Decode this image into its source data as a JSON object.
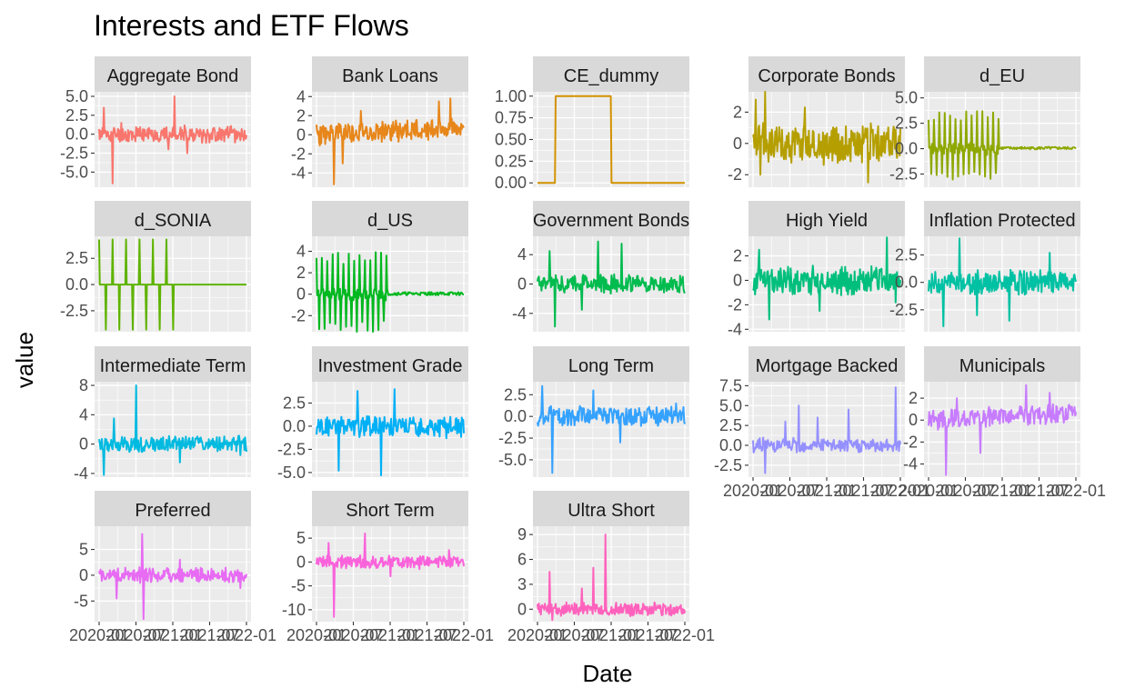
{
  "chart_data": {
    "type": "line",
    "title": "Interests and ETF Flows",
    "xlabel": "Date",
    "ylabel": "value",
    "x_tick_labels": [
      "2020-01",
      "2020-07",
      "2021-01",
      "2021-07",
      "2022-01"
    ],
    "x_range": [
      "2019-12-01",
      "2022-03-01"
    ],
    "grid": true,
    "legend": "none",
    "series": [
      {
        "name": "Aggregate Bond",
        "color": "#F8766D",
        "ylim": [
          -7,
          5.6
        ],
        "y_ticks": [
          5.0,
          2.5,
          0.0,
          -2.5,
          -5.0
        ],
        "y_tick_labels": [
          "5.0",
          "2.5",
          "0.0",
          "-2.5",
          "-5.0"
        ],
        "shape": "noise",
        "amp": 1.2,
        "spikes": [
          [
            0.03,
            3.5
          ],
          [
            0.09,
            -6.5
          ],
          [
            0.51,
            5.0
          ],
          [
            0.6,
            -2.5
          ],
          [
            0.47,
            -2.0
          ],
          [
            0.15,
            1.5
          ]
        ],
        "seed": 11
      },
      {
        "name": "Bank Loans",
        "color": "#E7861A",
        "ylim": [
          -5.5,
          4.5
        ],
        "y_ticks": [
          4,
          2,
          0,
          -2,
          -4
        ],
        "y_tick_labels": [
          "4",
          "2",
          "0",
          "-2",
          "-4"
        ],
        "shape": "noise",
        "amp": 1.3,
        "trend": 0.8,
        "spikes": [
          [
            0.12,
            -5.2
          ],
          [
            0.91,
            3.8
          ],
          [
            0.83,
            3.5
          ],
          [
            0.3,
            2.5
          ],
          [
            0.18,
            -3.0
          ]
        ],
        "seed": 23
      },
      {
        "name": "CE_dummy",
        "color": "#D39200",
        "ylim": [
          -0.05,
          1.05
        ],
        "y_ticks": [
          1.0,
          0.75,
          0.5,
          0.25,
          0.0
        ],
        "y_tick_labels": [
          "1.00",
          "0.75",
          "0.50",
          "0.25",
          "0.00"
        ],
        "shape": "dummy",
        "on": [
          0.12,
          0.5
        ]
      },
      {
        "name": "Corporate Bonds",
        "color": "#B59F00",
        "ylim": [
          -2.8,
          3.3
        ],
        "y_ticks": [
          2,
          0,
          -2
        ],
        "y_tick_labels": [
          "2",
          "0",
          "-2"
        ],
        "shape": "noise",
        "amp": 1.5,
        "spikes": [
          [
            0.02,
            2.8
          ],
          [
            0.08,
            3.3
          ],
          [
            0.05,
            -2.0
          ],
          [
            0.78,
            -2.5
          ],
          [
            0.35,
            2.3
          ]
        ],
        "seed": 37
      },
      {
        "name": "d_EU",
        "color": "#8EA800",
        "ylim": [
          -3.8,
          5.6
        ],
        "y_ticks": [
          5.0,
          2.5,
          0.0,
          -2.5
        ],
        "y_tick_labels": [
          "5.0",
          "2.5",
          "0.0",
          "-2.5"
        ],
        "shape": "osc",
        "amp": 3.8,
        "cut": 0.48,
        "tail": 0.25,
        "seed": 41
      },
      {
        "name": "d_SONIA",
        "color": "#5EB300",
        "ylim": [
          -4.5,
          4.6
        ],
        "y_ticks": [
          2.5,
          0.0,
          -2.5
        ],
        "y_tick_labels": [
          "2.5",
          "0.0",
          "-2.5"
        ],
        "shape": "step",
        "amp": 4.3,
        "cut": 0.52,
        "seed": 53
      },
      {
        "name": "d_US",
        "color": "#00B81F",
        "ylim": [
          -3.5,
          5.4
        ],
        "y_ticks": [
          4,
          2,
          0,
          -2
        ],
        "y_tick_labels": [
          "4",
          "2",
          "0",
          "-2"
        ],
        "shape": "osc",
        "amp": 4.0,
        "cut": 0.48,
        "tail": 0.3,
        "seed": 59
      },
      {
        "name": "Government Bonds",
        "color": "#00BB4E",
        "ylim": [
          -6.5,
          6.5
        ],
        "y_ticks": [
          4,
          0,
          -4
        ],
        "y_tick_labels": [
          "4",
          "0",
          "-4"
        ],
        "shape": "noise",
        "amp": 1.4,
        "spikes": [
          [
            0.12,
            -5.8
          ],
          [
            0.41,
            5.8
          ],
          [
            0.57,
            5.5
          ],
          [
            0.08,
            4.5
          ],
          [
            0.3,
            -3.5
          ]
        ],
        "seed": 61
      },
      {
        "name": "High Yield",
        "color": "#00BF7D",
        "ylim": [
          -4.2,
          3.6
        ],
        "y_ticks": [
          2,
          0,
          -2,
          -4
        ],
        "y_tick_labels": [
          "2",
          "0",
          "-2",
          "-4"
        ],
        "shape": "noise",
        "amp": 1.3,
        "spikes": [
          [
            0.91,
            3.5
          ],
          [
            0.11,
            -3.2
          ],
          [
            0.04,
            2.5
          ],
          [
            0.97,
            -1.8
          ],
          [
            0.45,
            -2.5
          ]
        ],
        "seed": 71
      },
      {
        "name": "Inflation Protected",
        "color": "#00C1A3",
        "ylim": [
          -4.5,
          4.2
        ],
        "y_ticks": [
          2.5,
          0.0,
          -2.5
        ],
        "y_tick_labels": [
          "2.5",
          "0.0",
          "-2.5"
        ],
        "shape": "noise",
        "amp": 1.2,
        "spikes": [
          [
            0.21,
            4.0
          ],
          [
            0.1,
            -4.0
          ],
          [
            0.55,
            -3.5
          ],
          [
            0.82,
            2.7
          ],
          [
            0.33,
            -3.0
          ]
        ],
        "seed": 83
      },
      {
        "name": "Intermediate Term",
        "color": "#00BAE0",
        "ylim": [
          -4.5,
          8.5
        ],
        "y_ticks": [
          8,
          4,
          0,
          -4
        ],
        "y_tick_labels": [
          "8",
          "4",
          "0",
          "-4"
        ],
        "shape": "noise",
        "amp": 1.3,
        "spikes": [
          [
            0.25,
            8.0
          ],
          [
            0.03,
            -4.2
          ],
          [
            0.1,
            3.5
          ],
          [
            0.55,
            -2.5
          ],
          [
            0.96,
            -1.5
          ]
        ],
        "seed": 97
      },
      {
        "name": "Investment Grade",
        "color": "#00B0F6",
        "ylim": [
          -5.5,
          4.8
        ],
        "y_ticks": [
          2.5,
          0.0,
          -2.5,
          -5.0
        ],
        "y_tick_labels": [
          "2.5",
          "0.0",
          "-2.5",
          "-5.0"
        ],
        "shape": "noise",
        "amp": 1.3,
        "spikes": [
          [
            0.28,
            3.8
          ],
          [
            0.15,
            -4.8
          ],
          [
            0.44,
            -5.3
          ],
          [
            0.53,
            4.0
          ],
          [
            0.88,
            -1.3
          ]
        ],
        "seed": 101
      },
      {
        "name": "Long Term",
        "color": "#35A2FF",
        "ylim": [
          -7,
          4
        ],
        "y_ticks": [
          2.5,
          0.0,
          -2.5,
          -5.0
        ],
        "y_tick_labels": [
          "2.5",
          "0.0",
          "-2.5",
          "-5.0"
        ],
        "shape": "noise",
        "amp": 1.3,
        "spikes": [
          [
            0.1,
            -6.5
          ],
          [
            0.03,
            3.5
          ],
          [
            0.38,
            3.0
          ],
          [
            0.56,
            -3.0
          ],
          [
            0.94,
            1.5
          ]
        ],
        "seed": 113
      },
      {
        "name": "Mortgage Backed",
        "color": "#9590FF",
        "ylim": [
          -4,
          8
        ],
        "y_ticks": [
          7.5,
          5.0,
          2.5,
          0.0,
          -2.5
        ],
        "y_tick_labels": [
          "7.5",
          "5.0",
          "2.5",
          "0.0",
          "-2.5"
        ],
        "shape": "noise",
        "amp": 1.0,
        "spikes": [
          [
            0.97,
            7.3
          ],
          [
            0.31,
            5.0
          ],
          [
            0.65,
            4.5
          ],
          [
            0.08,
            -3.5
          ],
          [
            0.22,
            3.0
          ],
          [
            0.44,
            3.5
          ]
        ],
        "seed": 127
      },
      {
        "name": "Municipals",
        "color": "#C77CFF",
        "ylim": [
          -5.2,
          3.5
        ],
        "y_ticks": [
          2,
          0,
          -2,
          -4
        ],
        "y_tick_labels": [
          "2",
          "0",
          "-2",
          "-4"
        ],
        "shape": "noise",
        "amp": 1.0,
        "trend": 0.6,
        "spikes": [
          [
            0.12,
            -5.0
          ],
          [
            0.66,
            3.2
          ],
          [
            0.35,
            -3.0
          ],
          [
            0.82,
            2.5
          ],
          [
            0.19,
            2.0
          ]
        ],
        "seed": 131
      },
      {
        "name": "Preferred",
        "color": "#E76BF3",
        "ylim": [
          -9,
          9.5
        ],
        "y_ticks": [
          5,
          0,
          -5
        ],
        "y_tick_labels": [
          "5",
          "0",
          "-5"
        ],
        "shape": "noise",
        "amp": 1.6,
        "spikes": [
          [
            0.29,
            8.0
          ],
          [
            0.3,
            -8.5
          ],
          [
            0.12,
            -4.5
          ],
          [
            0.55,
            3.0
          ],
          [
            0.96,
            -2.5
          ]
        ],
        "seed": 139
      },
      {
        "name": "Short Term",
        "color": "#FA62DB",
        "ylim": [
          -12.5,
          7.5
        ],
        "y_ticks": [
          5,
          0,
          -5,
          -10
        ],
        "y_tick_labels": [
          "5",
          "0",
          "-5",
          "-10"
        ],
        "shape": "noise",
        "amp": 1.5,
        "spikes": [
          [
            0.12,
            -11.5
          ],
          [
            0.33,
            6.0
          ],
          [
            0.08,
            4.0
          ],
          [
            0.5,
            -3.0
          ],
          [
            0.9,
            2.5
          ]
        ],
        "seed": 149
      },
      {
        "name": "Ultra Short",
        "color": "#FF62BC",
        "ylim": [
          -1.5,
          10
        ],
        "y_ticks": [
          9,
          6,
          3,
          0
        ],
        "y_tick_labels": [
          "9",
          "6",
          "3",
          "0"
        ],
        "shape": "noise",
        "amp": 0.9,
        "spikes": [
          [
            0.46,
            9.0
          ],
          [
            0.08,
            4.5
          ],
          [
            0.1,
            -1.3
          ],
          [
            0.38,
            5.0
          ],
          [
            0.3,
            2.5
          ]
        ],
        "seed": 157
      }
    ]
  }
}
